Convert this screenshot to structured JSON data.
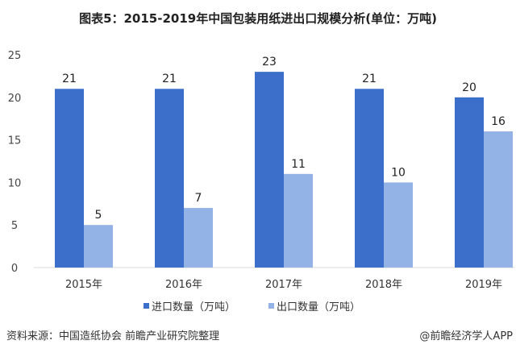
{
  "chart_data": {
    "type": "bar",
    "title": "图表5：2015-2019年中国包装用纸进出口规模分析(单位：万吨)",
    "categories": [
      "2015年",
      "2016年",
      "2017年",
      "2018年",
      "2019年"
    ],
    "series": [
      {
        "name": "进口数量（万吨）",
        "values": [
          21,
          21,
          23,
          21,
          20
        ],
        "color": "#3b6fc9"
      },
      {
        "name": "出口数量（万吨）",
        "values": [
          5,
          7,
          11,
          10,
          16
        ],
        "color": "#93b2e6"
      }
    ],
    "ylim": [
      0,
      25
    ],
    "yticks": [
      0,
      5,
      10,
      15,
      20,
      25
    ],
    "grid": false,
    "legend": "bottom"
  },
  "source": "资料来源：中国造纸协会 前瞻产业研究院整理",
  "credit": "@前瞻经济学人APP"
}
